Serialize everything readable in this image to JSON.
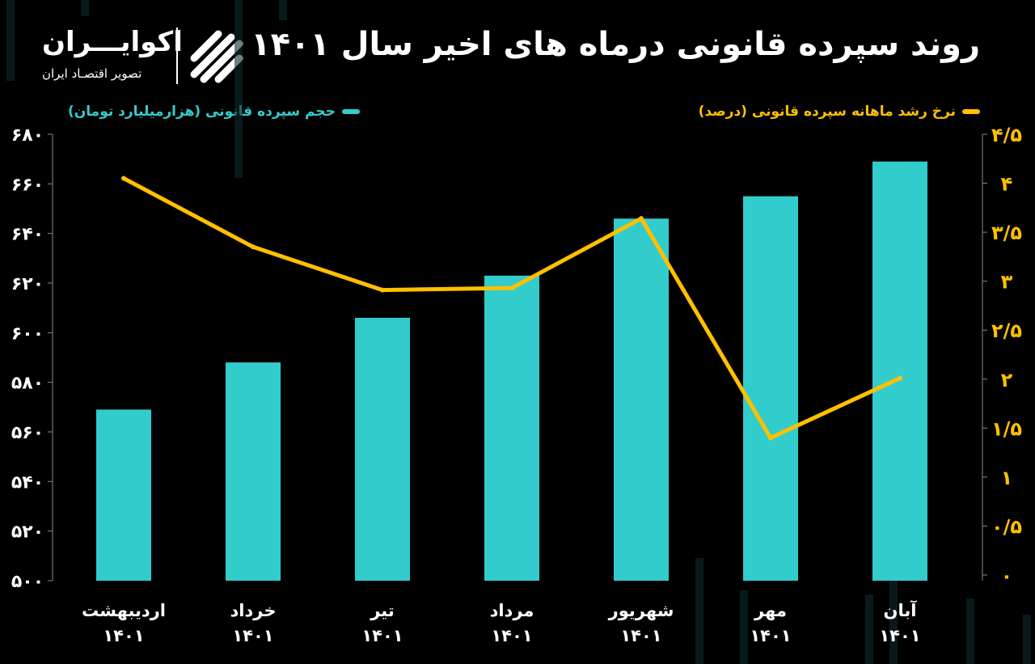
{
  "title": "روند سپرده قانونی درماه های اخیر سال ۱۴۰۱",
  "logo": {
    "name": "اکوایـــران",
    "subtitle": "تصویر اقتصـاد ایران"
  },
  "colors": {
    "bars": "#33CCCC",
    "line": "#FFC000",
    "background": "#000000"
  },
  "chart_data": {
    "type": "bar+line",
    "title": "روند سپرده قانونی درماه های اخیر سال ۱۴۰۱",
    "categories": [
      {
        "month": "اردیبهشت",
        "year": "۱۴۰۱"
      },
      {
        "month": "خرداد",
        "year": "۱۴۰۱"
      },
      {
        "month": "تیر",
        "year": "۱۴۰۱"
      },
      {
        "month": "مرداد",
        "year": "۱۴۰۱"
      },
      {
        "month": "شهریور",
        "year": "۱۴۰۱"
      },
      {
        "month": "مهر",
        "year": "۱۴۰۱"
      },
      {
        "month": "آبان",
        "year": "۱۴۰۱"
      }
    ],
    "series": [
      {
        "name": "حجم سپرده قانونی (هزارمیلیارد تومان)",
        "type": "bar",
        "axis": "left",
        "color": "#33CCCC",
        "values": [
          569,
          588,
          606,
          623,
          646,
          655,
          669
        ]
      },
      {
        "name": "نرخ رشد ماهانه سپرده قانونی (درصد)",
        "type": "line",
        "axis": "right",
        "color": "#FFC000",
        "values": [
          4.05,
          3.35,
          2.91,
          2.93,
          3.64,
          1.4,
          2.01
        ]
      }
    ],
    "left_axis": {
      "range": [
        500,
        680
      ],
      "ticks": [
        "۶۸۰",
        "۶۶۰",
        "۶۴۰",
        "۶۲۰",
        "۶۰۰",
        "۵۸۰",
        "۵۶۰",
        "۵۴۰",
        "۵۲۰",
        "۵۰۰"
      ],
      "tick_values": [
        680,
        660,
        640,
        620,
        600,
        580,
        560,
        540,
        520,
        500
      ]
    },
    "right_axis": {
      "range": [
        0,
        4.5
      ],
      "ticks": [
        "۴/۵",
        "۴",
        "۳/۵",
        "۳",
        "۲/۵",
        "۲",
        "۱/۵",
        "۱",
        "۰/۵",
        "۰"
      ],
      "tick_values": [
        4.5,
        4,
        3.5,
        3,
        2.5,
        2,
        1.5,
        1,
        0.5,
        0
      ]
    },
    "legend_placement": "top",
    "grid": false
  }
}
